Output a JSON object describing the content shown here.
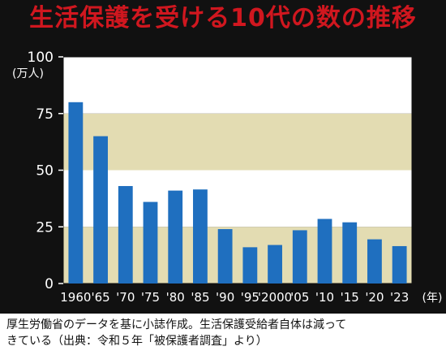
{
  "title": "生活保護を受ける10代の数の推移",
  "caption": {
    "line1": "厚生労働省のデータを基に小誌作成。生活保護受給者自体は減って",
    "line2": "きている（出典：令和５年「被保護者調査」より）"
  },
  "colors": {
    "background": "#111111",
    "title": "#d0171f",
    "band_tan": "#e3dcb2",
    "band_white": "#ffffff",
    "bar": "#1f6fbf"
  },
  "chart_data": {
    "type": "bar",
    "categories": [
      "1960",
      "'65",
      "'70",
      "'75",
      "'80",
      "'85",
      "'90",
      "'95",
      "'2000",
      "'05",
      "'10",
      "'15",
      "'20",
      "'23"
    ],
    "values": [
      80,
      65,
      43,
      36,
      41,
      41.5,
      24,
      16,
      17,
      23.5,
      28.5,
      27,
      19.5,
      16.5
    ],
    "ylim": [
      0,
      100
    ],
    "yticks": [
      "0",
      "25",
      "50",
      "75",
      "100"
    ],
    "ylabel": "(万人)",
    "xlabel": "(年)",
    "grid": false
  }
}
